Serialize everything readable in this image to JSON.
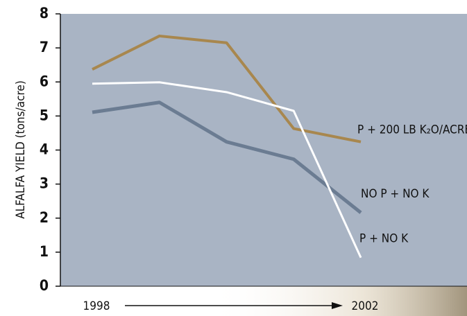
{
  "chart_data": {
    "type": "line",
    "y_label": "ALFALFA YIELD (tons/acre)",
    "x": [
      1998,
      1999,
      2000,
      2001,
      2002
    ],
    "xlim": [
      1998,
      2002
    ],
    "xticks": [
      1998,
      2002
    ],
    "ylim": [
      0,
      8
    ],
    "yticks": [
      0,
      1,
      2,
      3,
      4,
      5,
      6,
      7,
      8
    ],
    "series": [
      {
        "name": "P + 200 LB K₂O/ACRE",
        "color": "#a8874e",
        "values": [
          6.37,
          7.35,
          7.15,
          4.63,
          4.24
        ]
      },
      {
        "name": "NO P + NO K",
        "color": "#6b7c92",
        "values": [
          5.11,
          5.4,
          4.24,
          3.73,
          2.16
        ]
      },
      {
        "name": "P + NO K",
        "color": "#ffffff",
        "values": [
          5.95,
          5.99,
          5.7,
          5.15,
          0.84
        ]
      }
    ]
  }
}
